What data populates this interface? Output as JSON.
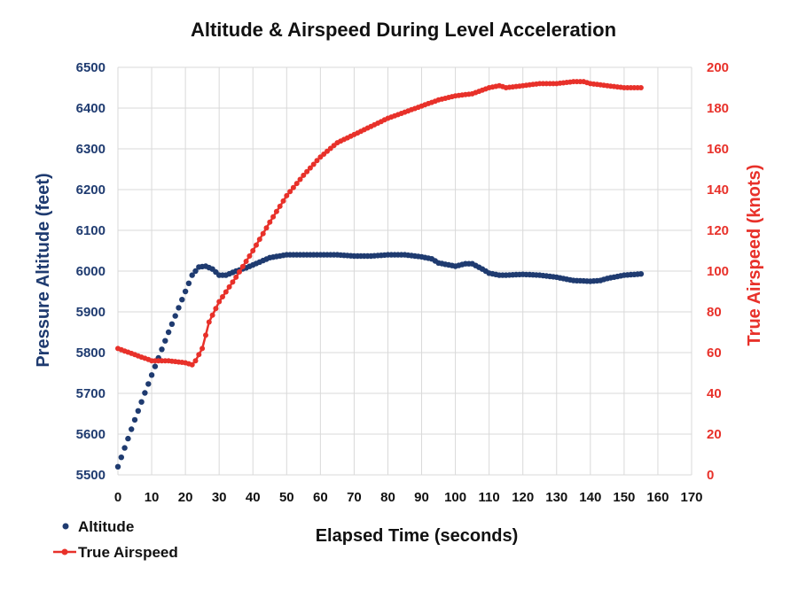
{
  "chart_data": {
    "type": "line",
    "title": "Altitude & Airspeed During Level Acceleration",
    "xlabel": "Elapsed Time (seconds)",
    "ylabel_left": "Pressure Altitude (feet)",
    "ylabel_right": "True Airspeed (knots)",
    "xlim": [
      0,
      170
    ],
    "ylim_left": [
      5500,
      6500
    ],
    "ylim_right": [
      0,
      200
    ],
    "x_ticks": [
      "0",
      "10",
      "20",
      "30",
      "40",
      "50",
      "60",
      "70",
      "80",
      "90",
      "100",
      "110",
      "120",
      "130",
      "140",
      "150",
      "160",
      "170"
    ],
    "y_left_ticks": [
      "5500",
      "5600",
      "5700",
      "5800",
      "5900",
      "6000",
      "6100",
      "6200",
      "6300",
      "6400",
      "6500"
    ],
    "y_right_ticks": [
      "0",
      "20",
      "40",
      "60",
      "80",
      "100",
      "120",
      "140",
      "160",
      "180",
      "200"
    ],
    "grid": true,
    "legend_position": "bottom-left",
    "colors": {
      "altitude": "#1f3b70",
      "airspeed": "#e8312a",
      "left_axis": "#1f3b70",
      "right_axis": "#e8312a"
    },
    "series": [
      {
        "name": "Altitude",
        "axis": "left",
        "style": "markers",
        "x": [
          0,
          5,
          10,
          15,
          20,
          22,
          24,
          26,
          28,
          30,
          32,
          35,
          38,
          40,
          45,
          50,
          55,
          60,
          65,
          70,
          75,
          80,
          85,
          90,
          93,
          95,
          100,
          103,
          105,
          108,
          110,
          113,
          115,
          120,
          125,
          130,
          133,
          135,
          140,
          143,
          145,
          150,
          155
        ],
        "y": [
          5520,
          5635,
          5745,
          5850,
          5950,
          5990,
          6010,
          6012,
          6005,
          5990,
          5990,
          6000,
          6008,
          6015,
          6033,
          6040,
          6040,
          6040,
          6040,
          6037,
          6037,
          6040,
          6040,
          6035,
          6030,
          6020,
          6012,
          6018,
          6018,
          6005,
          5995,
          5990,
          5990,
          5992,
          5990,
          5985,
          5980,
          5977,
          5975,
          5977,
          5982,
          5990,
          5993
        ]
      },
      {
        "name": "True Airspeed",
        "axis": "right",
        "style": "line-markers",
        "x": [
          0,
          5,
          10,
          15,
          20,
          22,
          23,
          25,
          27,
          30,
          35,
          40,
          45,
          50,
          55,
          60,
          65,
          70,
          75,
          80,
          85,
          90,
          95,
          100,
          105,
          110,
          113,
          115,
          120,
          125,
          130,
          135,
          138,
          140,
          145,
          150,
          155
        ],
        "y": [
          62,
          59,
          56,
          56,
          55,
          54,
          56,
          62,
          75,
          85,
          97,
          110,
          124,
          137,
          147,
          156,
          163,
          167,
          171,
          175,
          178,
          181,
          184,
          186,
          187,
          190,
          191,
          190,
          191,
          192,
          192,
          193,
          193,
          192,
          191,
          190,
          190
        ]
      }
    ]
  }
}
